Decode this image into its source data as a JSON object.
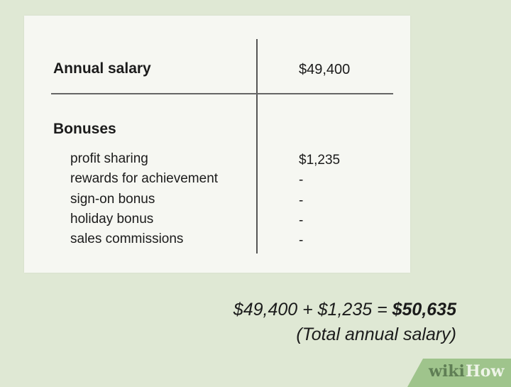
{
  "table": {
    "annual_label": "Annual salary",
    "annual_value": "$49,400",
    "bonuses_label": "Bonuses",
    "items": [
      {
        "label": "profit sharing",
        "value": "$1,235"
      },
      {
        "label": "rewards for achievement",
        "value": "-"
      },
      {
        "label": "sign-on bonus",
        "value": "-"
      },
      {
        "label": "holiday bonus",
        "value": "-"
      },
      {
        "label": "sales commissions",
        "value": "-"
      }
    ]
  },
  "formula": {
    "expression": "$49,400 + $1,235 = ",
    "result": "$50,635",
    "caption": "(Total annual salary)"
  },
  "logo": {
    "wiki": "wiki",
    "how": "How"
  },
  "colors": {
    "background": "#dfe8d4",
    "card": "#f6f7f2",
    "logo": "#9fc48c"
  }
}
